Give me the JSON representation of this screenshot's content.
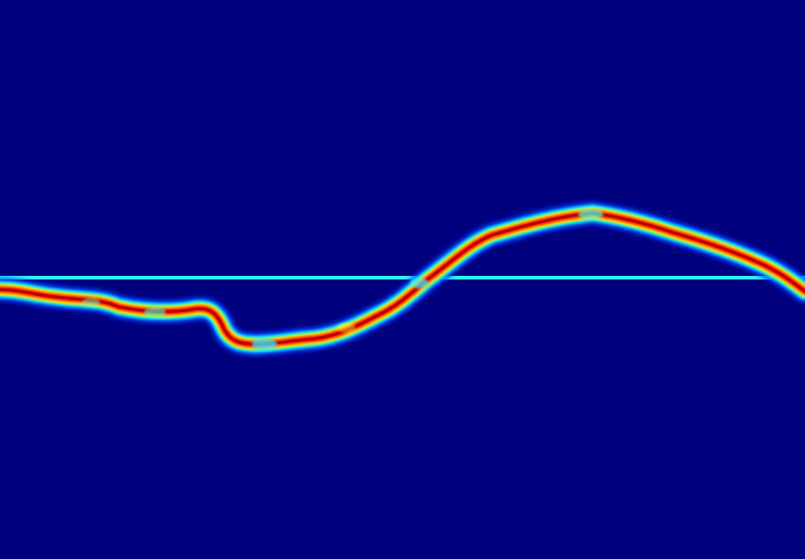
{
  "image": {
    "background_color": "#00007f",
    "colormap": "jet",
    "colormap_stops": [
      "#00007f",
      "#0000ff",
      "#00ffff",
      "#ffff00",
      "#ff0000",
      "#7f0000"
    ]
  }
}
